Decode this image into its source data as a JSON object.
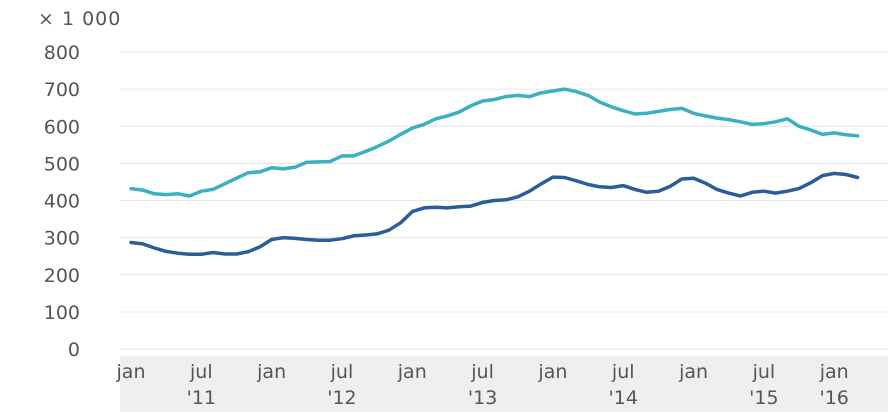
{
  "chart_data": {
    "type": "line",
    "title": "",
    "unit_label": "× 1 000",
    "xlabel": "",
    "ylabel": "",
    "ylim": [
      0,
      800
    ],
    "y_ticks": [
      "0",
      "100",
      "200",
      "300",
      "400",
      "500",
      "600",
      "700",
      "800"
    ],
    "x_tick_labels": [
      {
        "month": "jan",
        "year": ""
      },
      {
        "month": "jul",
        "year": "'11"
      },
      {
        "month": "jan",
        "year": ""
      },
      {
        "month": "jul",
        "year": "'12"
      },
      {
        "month": "jan",
        "year": ""
      },
      {
        "month": "jul",
        "year": "'13"
      },
      {
        "month": "jan",
        "year": ""
      },
      {
        "month": "jul",
        "year": "'14"
      },
      {
        "month": "jan",
        "year": ""
      },
      {
        "month": "jul",
        "year": "'15"
      },
      {
        "month": "jan",
        "year": "'16"
      }
    ],
    "x_start": "2011-01",
    "x": [
      "2011-01",
      "2011-02",
      "2011-03",
      "2011-04",
      "2011-05",
      "2011-06",
      "2011-07",
      "2011-08",
      "2011-09",
      "2011-10",
      "2011-11",
      "2011-12",
      "2012-01",
      "2012-02",
      "2012-03",
      "2012-04",
      "2012-05",
      "2012-06",
      "2012-07",
      "2012-08",
      "2012-09",
      "2012-10",
      "2012-11",
      "2012-12",
      "2013-01",
      "2013-02",
      "2013-03",
      "2013-04",
      "2013-05",
      "2013-06",
      "2013-07",
      "2013-08",
      "2013-09",
      "2013-10",
      "2013-11",
      "2013-12",
      "2014-01",
      "2014-02",
      "2014-03",
      "2014-04",
      "2014-05",
      "2014-06",
      "2014-07",
      "2014-08",
      "2014-09",
      "2014-10",
      "2014-11",
      "2014-12",
      "2015-01",
      "2015-02",
      "2015-03",
      "2015-04",
      "2015-05",
      "2015-06",
      "2015-07",
      "2015-08",
      "2015-09",
      "2015-10",
      "2015-11",
      "2015-12",
      "2016-01",
      "2016-02",
      "2016-03"
    ],
    "grid": true,
    "legend": "none",
    "series": [
      {
        "color": "#3ab0c3",
        "values": [
          432,
          428,
          418,
          416,
          418,
          412,
          425,
          430,
          445,
          460,
          475,
          477,
          488,
          485,
          490,
          503,
          504,
          505,
          520,
          520,
          532,
          545,
          560,
          578,
          595,
          605,
          620,
          628,
          638,
          655,
          668,
          672,
          680,
          683,
          680,
          690,
          695,
          700,
          693,
          683,
          665,
          652,
          642,
          633,
          635,
          640,
          645,
          648,
          635,
          628,
          622,
          618,
          612,
          605,
          607,
          612,
          620,
          600,
          590,
          578,
          582,
          577,
          574
        ]
      },
      {
        "color": "#2a5d99",
        "values": [
          287,
          283,
          272,
          263,
          258,
          255,
          255,
          260,
          256,
          256,
          262,
          275,
          295,
          300,
          298,
          295,
          293,
          293,
          297,
          305,
          307,
          310,
          320,
          340,
          370,
          380,
          382,
          380,
          383,
          385,
          395,
          400,
          402,
          410,
          425,
          445,
          463,
          462,
          453,
          443,
          437,
          435,
          440,
          430,
          422,
          425,
          438,
          458,
          460,
          447,
          430,
          420,
          412,
          422,
          425,
          420,
          425,
          432,
          448,
          467,
          473,
          470,
          462
        ]
      }
    ]
  }
}
